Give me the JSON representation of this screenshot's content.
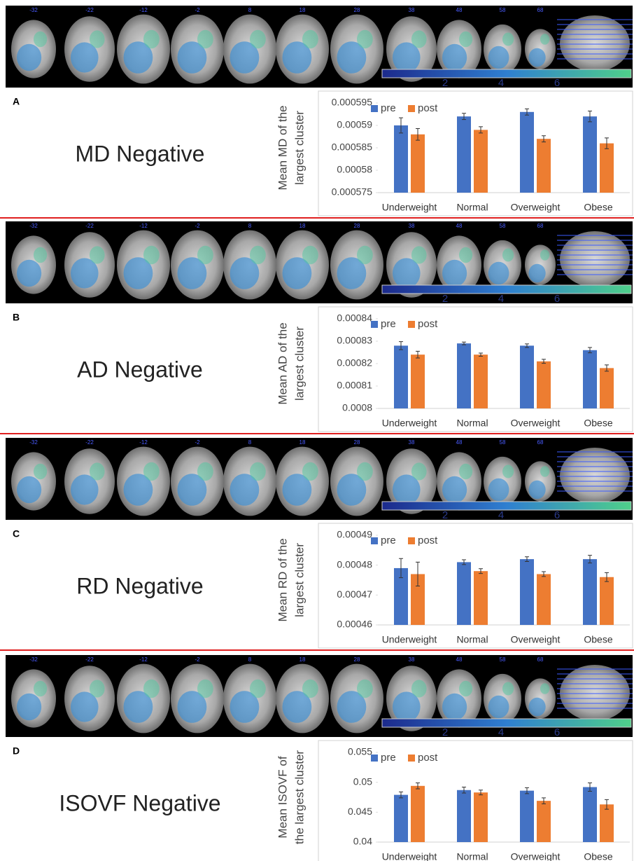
{
  "panels": [
    {
      "label": "A",
      "heading": "MD Negative",
      "slices": [
        -32,
        -22,
        -12,
        -2,
        8,
        18,
        28,
        38,
        48,
        58,
        68
      ],
      "colorbar_ticks": [
        2,
        4,
        6
      ]
    },
    {
      "label": "B",
      "heading": "AD Negative",
      "slices": [
        -32,
        -22,
        -12,
        -2,
        8,
        18,
        28,
        38,
        48,
        58,
        68
      ],
      "colorbar_ticks": [
        2,
        4,
        6
      ]
    },
    {
      "label": "C",
      "heading": "RD Negative",
      "slices": [
        -32,
        -22,
        -12,
        -2,
        8,
        18,
        28,
        38,
        48,
        58,
        68
      ],
      "colorbar_ticks": [
        2,
        4,
        6
      ]
    },
    {
      "label": "D",
      "heading": "ISOVF Negative",
      "slices": [
        -32,
        -22,
        -12,
        -2,
        8,
        18,
        28,
        38,
        48,
        58,
        68
      ],
      "colorbar_ticks": [
        2,
        4,
        6
      ]
    }
  ],
  "chart_data": [
    {
      "type": "bar",
      "ylabel": [
        "Mean MD of the",
        "largest cluster"
      ],
      "categories": [
        "Underweight",
        "Normal",
        "Overweight",
        "Obese"
      ],
      "series": [
        {
          "name": "pre",
          "color": "#4472c4",
          "values": [
            0.00059,
            0.000592,
            0.000593,
            0.000592
          ],
          "errors": [
            1.7e-06,
            7e-07,
            7e-07,
            1.2e-06
          ]
        },
        {
          "name": "post",
          "color": "#ed7d31",
          "values": [
            0.000588,
            0.000589,
            0.000587,
            0.000586
          ],
          "errors": [
            1.3e-06,
            7e-07,
            7e-07,
            1.2e-06
          ]
        }
      ],
      "ylim": [
        0.000575,
        0.000595
      ],
      "yticks": [
        0.000575,
        0.00058,
        0.000585,
        0.00059,
        0.000595
      ],
      "legend": "top-left"
    },
    {
      "type": "bar",
      "ylabel": [
        "Mean AD of the",
        "largest cluster"
      ],
      "categories": [
        "Underweight",
        "Normal",
        "Overweight",
        "Obese"
      ],
      "series": [
        {
          "name": "pre",
          "color": "#4472c4",
          "values": [
            0.000828,
            0.000829,
            0.000828,
            0.000826
          ],
          "errors": [
            1.8e-06,
            6e-07,
            8e-07,
            1.2e-06
          ]
        },
        {
          "name": "post",
          "color": "#ed7d31",
          "values": [
            0.000824,
            0.000824,
            0.000821,
            0.000818
          ],
          "errors": [
            1.5e-06,
            7e-07,
            9e-07,
            1.4e-06
          ]
        }
      ],
      "ylim": [
        0.0008,
        0.00084
      ],
      "yticks": [
        0.0008,
        0.00081,
        0.00082,
        0.00083,
        0.00084
      ],
      "legend": "top-left"
    },
    {
      "type": "bar",
      "ylabel": [
        "Mean RD of the",
        "largest cluster"
      ],
      "categories": [
        "Underweight",
        "Normal",
        "Overweight",
        "Obese"
      ],
      "series": [
        {
          "name": "pre",
          "color": "#4472c4",
          "values": [
            0.000479,
            0.000481,
            0.000482,
            0.000482
          ],
          "errors": [
            3.2e-06,
            8e-07,
            8e-07,
            1.3e-06
          ]
        },
        {
          "name": "post",
          "color": "#ed7d31",
          "values": [
            0.000477,
            0.000478,
            0.000477,
            0.000476
          ],
          "errors": [
            4e-06,
            8e-07,
            8e-07,
            1.5e-06
          ]
        }
      ],
      "ylim": [
        0.00046,
        0.00049
      ],
      "yticks": [
        0.00046,
        0.00047,
        0.00048,
        0.00049
      ],
      "legend": "top-left"
    },
    {
      "type": "bar",
      "ylabel": [
        "Mean ISOVF of",
        "the largest cluster"
      ],
      "categories": [
        "Underweight",
        "Normal",
        "Overweight",
        "Obese"
      ],
      "series": [
        {
          "name": "pre",
          "color": "#4472c4",
          "values": [
            0.0479,
            0.0487,
            0.0486,
            0.0492
          ],
          "errors": [
            0.0005,
            0.0005,
            0.0005,
            0.0007
          ]
        },
        {
          "name": "post",
          "color": "#ed7d31",
          "values": [
            0.0494,
            0.0483,
            0.0469,
            0.0463
          ],
          "errors": [
            0.0005,
            0.0004,
            0.0005,
            0.0008
          ]
        }
      ],
      "ylim": [
        0.04,
        0.055
      ],
      "yticks": [
        0.04,
        0.045,
        0.05,
        0.055
      ],
      "legend": "top-left"
    }
  ]
}
